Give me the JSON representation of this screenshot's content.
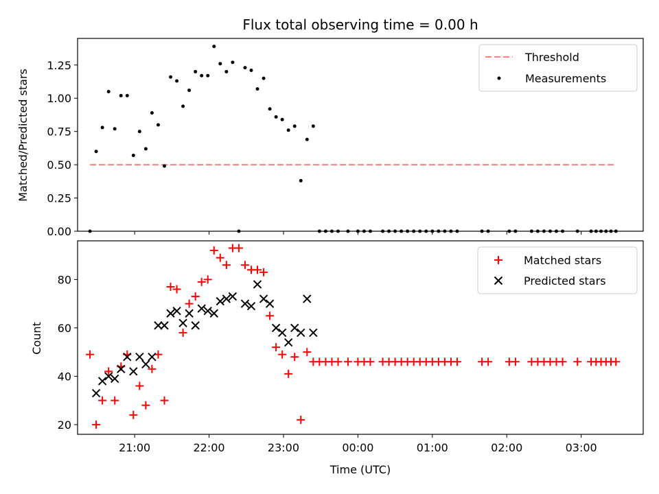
{
  "chart_data": [
    {
      "type": "scatter",
      "title": "Flux total observing time = 0.00 h",
      "xlabel": "",
      "ylabel": "Matched/Predicted stars",
      "ylim": [
        0,
        1.45
      ],
      "yticks": [
        "0.00",
        "0.25",
        "0.50",
        "0.75",
        "1.00",
        "1.25"
      ],
      "ytick_values": [
        0,
        0.25,
        0.5,
        0.75,
        1.0,
        1.25
      ],
      "xlim": [
        "20:14",
        "03:50"
      ],
      "xticks_hours": [
        21,
        22,
        23,
        24,
        25,
        26,
        27
      ],
      "legend_position": "upper right",
      "threshold": {
        "name": "Threshold",
        "value": 0.5,
        "x_start": "20:24",
        "x_end": "03:28",
        "color": "#ff7f7f",
        "style": "dashed"
      },
      "series": [
        {
          "name": "Measurements",
          "color": "#000000",
          "marker": "dot",
          "points": [
            [
              "20:24",
              0.0
            ],
            [
              "20:29",
              0.6
            ],
            [
              "20:34",
              0.78
            ],
            [
              "20:39",
              1.05
            ],
            [
              "20:44",
              0.77
            ],
            [
              "20:49",
              1.02
            ],
            [
              "20:54",
              1.02
            ],
            [
              "20:59",
              0.57
            ],
            [
              "21:04",
              0.75
            ],
            [
              "21:09",
              0.62
            ],
            [
              "21:14",
              0.89
            ],
            [
              "21:19",
              0.8
            ],
            [
              "21:24",
              0.49
            ],
            [
              "21:29",
              1.16
            ],
            [
              "21:34",
              1.13
            ],
            [
              "21:39",
              0.94
            ],
            [
              "21:44",
              1.06
            ],
            [
              "21:49",
              1.2
            ],
            [
              "21:54",
              1.17
            ],
            [
              "21:59",
              1.17
            ],
            [
              "22:04",
              1.39
            ],
            [
              "22:09",
              1.26
            ],
            [
              "22:14",
              1.2
            ],
            [
              "22:19",
              1.27
            ],
            [
              "22:24",
              0.0
            ],
            [
              "22:29",
              1.23
            ],
            [
              "22:34",
              1.21
            ],
            [
              "22:39",
              1.07
            ],
            [
              "22:44",
              1.15
            ],
            [
              "22:49",
              0.92
            ],
            [
              "22:54",
              0.86
            ],
            [
              "22:59",
              0.84
            ],
            [
              "23:04",
              0.76
            ],
            [
              "23:09",
              0.79
            ],
            [
              "23:14",
              0.38
            ],
            [
              "23:19",
              0.69
            ],
            [
              "23:24",
              0.79
            ],
            [
              "23:29",
              0.0
            ],
            [
              "23:34",
              0.0
            ],
            [
              "23:39",
              0.0
            ],
            [
              "23:44",
              0.0
            ],
            [
              "23:52",
              0.0
            ],
            [
              "00:00",
              0.0
            ],
            [
              "00:05",
              0.0
            ],
            [
              "00:10",
              0.0
            ],
            [
              "00:20",
              0.0
            ],
            [
              "00:25",
              0.0
            ],
            [
              "00:30",
              0.0
            ],
            [
              "00:35",
              0.0
            ],
            [
              "00:40",
              0.0
            ],
            [
              "00:45",
              0.0
            ],
            [
              "00:50",
              0.0
            ],
            [
              "00:55",
              0.0
            ],
            [
              "01:00",
              0.0
            ],
            [
              "01:05",
              0.0
            ],
            [
              "01:10",
              0.0
            ],
            [
              "01:15",
              0.0
            ],
            [
              "01:20",
              0.0
            ],
            [
              "01:40",
              0.0
            ],
            [
              "01:45",
              0.0
            ],
            [
              "02:02",
              0.0
            ],
            [
              "02:07",
              0.0
            ],
            [
              "02:20",
              0.0
            ],
            [
              "02:25",
              0.0
            ],
            [
              "02:30",
              0.0
            ],
            [
              "02:35",
              0.0
            ],
            [
              "02:40",
              0.0
            ],
            [
              "02:45",
              0.0
            ],
            [
              "02:57",
              0.0
            ],
            [
              "03:08",
              0.0
            ],
            [
              "03:12",
              0.0
            ],
            [
              "03:16",
              0.0
            ],
            [
              "03:20",
              0.0
            ],
            [
              "03:24",
              0.0
            ],
            [
              "03:28",
              0.0
            ]
          ]
        }
      ]
    },
    {
      "type": "scatter",
      "title": "",
      "xlabel": "Time (UTC)",
      "ylabel": "Count",
      "ylim": [
        16,
        96
      ],
      "yticks": [
        "20",
        "40",
        "60",
        "80"
      ],
      "ytick_values": [
        20,
        40,
        60,
        80
      ],
      "xlim": [
        "20:14",
        "03:50"
      ],
      "xticks": [
        "21:00",
        "22:00",
        "23:00",
        "00:00",
        "01:00",
        "02:00",
        "03:00"
      ],
      "xticks_hours": [
        21,
        22,
        23,
        24,
        25,
        26,
        27
      ],
      "legend_position": "upper right",
      "series": [
        {
          "name": "Matched stars",
          "color": "#ff0000",
          "marker": "plus",
          "points": [
            [
              "20:24",
              49
            ],
            [
              "20:29",
              20
            ],
            [
              "20:34",
              30
            ],
            [
              "20:39",
              42
            ],
            [
              "20:44",
              30
            ],
            [
              "20:49",
              44
            ],
            [
              "20:54",
              49
            ],
            [
              "20:59",
              24
            ],
            [
              "21:04",
              36
            ],
            [
              "21:09",
              28
            ],
            [
              "21:14",
              43
            ],
            [
              "21:19",
              49
            ],
            [
              "21:24",
              30
            ],
            [
              "21:29",
              77
            ],
            [
              "21:34",
              76
            ],
            [
              "21:39",
              58
            ],
            [
              "21:44",
              70
            ],
            [
              "21:49",
              73
            ],
            [
              "21:54",
              79
            ],
            [
              "21:59",
              80
            ],
            [
              "22:04",
              92
            ],
            [
              "22:09",
              89
            ],
            [
              "22:14",
              86
            ],
            [
              "22:19",
              93
            ],
            [
              "22:24",
              93
            ],
            [
              "22:29",
              86
            ],
            [
              "22:34",
              84
            ],
            [
              "22:39",
              84
            ],
            [
              "22:44",
              83
            ],
            [
              "22:49",
              65
            ],
            [
              "22:54",
              52
            ],
            [
              "22:59",
              49
            ],
            [
              "23:04",
              41
            ],
            [
              "23:09",
              48
            ],
            [
              "23:14",
              22
            ],
            [
              "23:19",
              50
            ],
            [
              "23:24",
              46
            ],
            [
              "23:29",
              46
            ],
            [
              "23:34",
              46
            ],
            [
              "23:39",
              46
            ],
            [
              "23:44",
              46
            ],
            [
              "23:52",
              46
            ],
            [
              "00:00",
              46
            ],
            [
              "00:05",
              46
            ],
            [
              "00:10",
              46
            ],
            [
              "00:20",
              46
            ],
            [
              "00:25",
              46
            ],
            [
              "00:30",
              46
            ],
            [
              "00:35",
              46
            ],
            [
              "00:40",
              46
            ],
            [
              "00:45",
              46
            ],
            [
              "00:50",
              46
            ],
            [
              "00:55",
              46
            ],
            [
              "01:00",
              46
            ],
            [
              "01:05",
              46
            ],
            [
              "01:10",
              46
            ],
            [
              "01:15",
              46
            ],
            [
              "01:20",
              46
            ],
            [
              "01:40",
              46
            ],
            [
              "01:45",
              46
            ],
            [
              "02:02",
              46
            ],
            [
              "02:07",
              46
            ],
            [
              "02:20",
              46
            ],
            [
              "02:25",
              46
            ],
            [
              "02:30",
              46
            ],
            [
              "02:35",
              46
            ],
            [
              "02:40",
              46
            ],
            [
              "02:45",
              46
            ],
            [
              "02:57",
              46
            ],
            [
              "03:08",
              46
            ],
            [
              "03:12",
              46
            ],
            [
              "03:16",
              46
            ],
            [
              "03:20",
              46
            ],
            [
              "03:24",
              46
            ],
            [
              "03:28",
              46
            ]
          ]
        },
        {
          "name": "Predicted stars",
          "color": "#000000",
          "marker": "x",
          "points": [
            [
              "20:29",
              33
            ],
            [
              "20:34",
              38
            ],
            [
              "20:39",
              40
            ],
            [
              "20:44",
              39
            ],
            [
              "20:49",
              43
            ],
            [
              "20:54",
              48
            ],
            [
              "20:59",
              42
            ],
            [
              "21:04",
              48
            ],
            [
              "21:09",
              45
            ],
            [
              "21:14",
              48
            ],
            [
              "21:19",
              61
            ],
            [
              "21:24",
              61
            ],
            [
              "21:29",
              66
            ],
            [
              "21:34",
              67
            ],
            [
              "21:39",
              62
            ],
            [
              "21:44",
              66
            ],
            [
              "21:49",
              61
            ],
            [
              "21:54",
              68
            ],
            [
              "21:59",
              67
            ],
            [
              "22:04",
              66
            ],
            [
              "22:09",
              71
            ],
            [
              "22:14",
              72
            ],
            [
              "22:19",
              73
            ],
            [
              "22:29",
              70
            ],
            [
              "22:34",
              69
            ],
            [
              "22:39",
              78
            ],
            [
              "22:44",
              72
            ],
            [
              "22:49",
              70
            ],
            [
              "22:54",
              60
            ],
            [
              "22:59",
              58
            ],
            [
              "23:04",
              54
            ],
            [
              "23:09",
              60
            ],
            [
              "23:14",
              58
            ],
            [
              "23:19",
              72
            ],
            [
              "23:24",
              58
            ]
          ]
        }
      ]
    }
  ]
}
